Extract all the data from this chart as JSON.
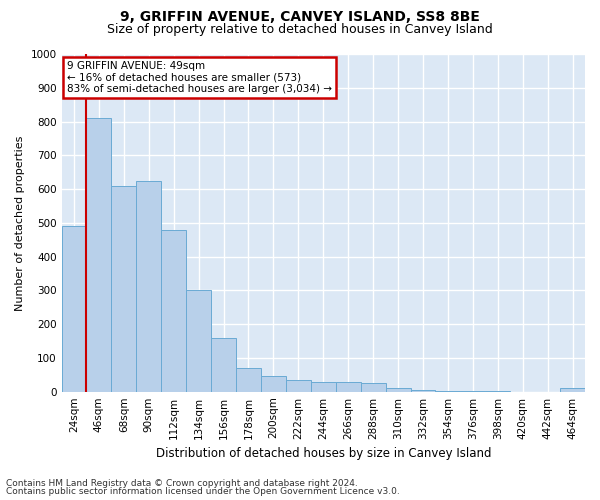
{
  "title1": "9, GRIFFIN AVENUE, CANVEY ISLAND, SS8 8BE",
  "title2": "Size of property relative to detached houses in Canvey Island",
  "xlabel": "Distribution of detached houses by size in Canvey Island",
  "ylabel": "Number of detached properties",
  "footnote1": "Contains HM Land Registry data © Crown copyright and database right 2024.",
  "footnote2": "Contains public sector information licensed under the Open Government Licence v3.0.",
  "annotation_title": "9 GRIFFIN AVENUE: 49sqm",
  "annotation_line2": "← 16% of detached houses are smaller (573)",
  "annotation_line3": "83% of semi-detached houses are larger (3,034) →",
  "bar_categories": [
    "24sqm",
    "46sqm",
    "68sqm",
    "90sqm",
    "112sqm",
    "134sqm",
    "156sqm",
    "178sqm",
    "200sqm",
    "222sqm",
    "244sqm",
    "266sqm",
    "288sqm",
    "310sqm",
    "332sqm",
    "354sqm",
    "376sqm",
    "398sqm",
    "420sqm",
    "442sqm",
    "464sqm"
  ],
  "bar_values": [
    490,
    810,
    610,
    625,
    480,
    300,
    160,
    70,
    45,
    35,
    30,
    28,
    25,
    12,
    5,
    3,
    2,
    2,
    0,
    0,
    10
  ],
  "bar_color": "#b8d0ea",
  "bar_edge_color": "#6aaad4",
  "vline_color": "#cc0000",
  "vline_x_index": 1,
  "annotation_box_color": "#cc0000",
  "annotation_box_bg": "#ffffff",
  "plot_bg_color": "#dce8f5",
  "ylim": [
    0,
    1000
  ],
  "yticks": [
    0,
    100,
    200,
    300,
    400,
    500,
    600,
    700,
    800,
    900,
    1000
  ],
  "grid_color": "#ffffff",
  "title1_fontsize": 10,
  "title2_fontsize": 9,
  "xlabel_fontsize": 8.5,
  "ylabel_fontsize": 8,
  "tick_fontsize": 7.5,
  "annotation_fontsize": 7.5,
  "footnote_fontsize": 6.5
}
